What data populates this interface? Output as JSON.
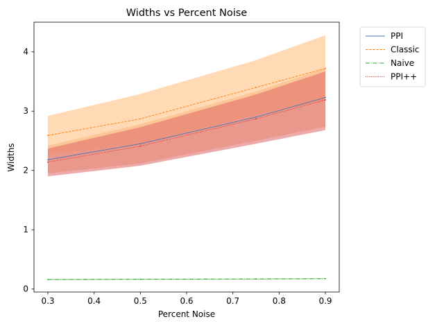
{
  "chart_data": {
    "type": "line",
    "title": "Widths vs Percent Noise",
    "xlabel": "Percent Noise",
    "ylabel": "Widths",
    "xlim": [
      0.27,
      0.93
    ],
    "ylim": [
      -0.05,
      4.5
    ],
    "x_ticks": [
      {
        "value": 0.3,
        "label": "0.3"
      },
      {
        "value": 0.4,
        "label": "0.4"
      },
      {
        "value": 0.5,
        "label": "0.5"
      },
      {
        "value": 0.6,
        "label": "0.6"
      },
      {
        "value": 0.7,
        "label": "0.7"
      },
      {
        "value": 0.8,
        "label": "0.8"
      },
      {
        "value": 0.9,
        "label": "0.9"
      }
    ],
    "y_ticks": [
      {
        "value": 0,
        "label": "0"
      },
      {
        "value": 1,
        "label": "1"
      },
      {
        "value": 2,
        "label": "2"
      },
      {
        "value": 3,
        "label": "3"
      },
      {
        "value": 4,
        "label": "4"
      }
    ],
    "grid": false,
    "legend_position": "outside-top-right",
    "x": [
      0.3,
      0.5,
      0.75,
      0.9
    ],
    "series": [
      {
        "name": "PPI",
        "color": "#4c72b0",
        "dash": "solid",
        "values": [
          2.18,
          2.45,
          2.9,
          3.23
        ],
        "band_lower": [
          1.95,
          2.12,
          2.5,
          2.74
        ],
        "band_upper": [
          2.42,
          2.78,
          3.33,
          3.72
        ],
        "band_color": "#f4b183"
      },
      {
        "name": "Classic",
        "color": "#ff7f0e",
        "dash": "dashed",
        "values": [
          2.59,
          2.87,
          3.4,
          3.72
        ],
        "band_lower": [
          2.27,
          2.45,
          2.94,
          3.17
        ],
        "band_upper": [
          2.92,
          3.29,
          3.86,
          4.28
        ],
        "band_color": "#ffbb78"
      },
      {
        "name": "Naive",
        "color": "#2ca02c",
        "dash": "dashdot",
        "values": [
          0.16,
          0.165,
          0.17,
          0.175
        ],
        "band_lower": [
          0.15,
          0.155,
          0.16,
          0.165
        ],
        "band_upper": [
          0.17,
          0.175,
          0.18,
          0.185
        ],
        "band_color": "#98df8a"
      },
      {
        "name": "PPI++",
        "color": "#d62728",
        "dash": "dotted",
        "values": [
          2.14,
          2.41,
          2.87,
          3.19
        ],
        "band_lower": [
          1.9,
          2.08,
          2.45,
          2.68
        ],
        "band_upper": [
          2.37,
          2.73,
          3.28,
          3.67
        ],
        "band_color": "#e06666"
      }
    ]
  }
}
